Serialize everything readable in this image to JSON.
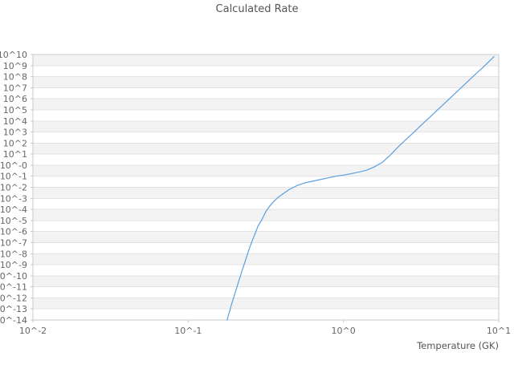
{
  "chart_data": {
    "type": "line",
    "title": "Calculated Rate",
    "xlabel": "Temperature (GK)",
    "ylabel": "",
    "x_scale": "log",
    "y_scale": "log",
    "xlim": [
      0.01,
      10
    ],
    "ylim": [
      1e-14,
      10000000000.0
    ],
    "grid": "horizontal-bands",
    "legend": "none",
    "x_tick_values": [
      0.01,
      0.1,
      1,
      10
    ],
    "x_tick_labels": [
      "10^-2",
      "10^-1",
      "10^0",
      "10^1"
    ],
    "y_tick_labels": [
      "10^10",
      "10^9",
      "10^8",
      "10^7",
      "10^6",
      "10^5",
      "10^4",
      "10^3",
      "10^2",
      "10^1",
      "10^-0",
      "10^-1",
      "10^-2",
      "10^-3",
      "10^-4",
      "10^-5",
      "10^-6",
      "10^-7",
      "10^-8",
      "10^-9",
      "10^-10",
      "10^-11",
      "10^-12",
      "10^-13",
      "10^-14"
    ],
    "y_tick_exponents": [
      10,
      9,
      8,
      7,
      6,
      5,
      4,
      3,
      2,
      1,
      0,
      -1,
      -2,
      -3,
      -4,
      -5,
      -6,
      -7,
      -8,
      -9,
      -10,
      -11,
      -12,
      -13,
      -14
    ],
    "series": [
      {
        "name": "calculated-rate",
        "color": "#5b9fe0",
        "points": [
          [
            0.178,
            1e-14
          ],
          [
            0.19,
            2.5e-13
          ],
          [
            0.2,
            2.5e-12
          ],
          [
            0.212,
            3.5e-11
          ],
          [
            0.224,
            4e-10
          ],
          [
            0.237,
            4.5e-09
          ],
          [
            0.251,
            5e-08
          ],
          [
            0.266,
            4e-07
          ],
          [
            0.282,
            3.2e-06
          ],
          [
            0.3,
            1.4e-05
          ],
          [
            0.316,
            6.3e-05
          ],
          [
            0.335,
            0.0002
          ],
          [
            0.355,
            0.0005
          ],
          [
            0.376,
            0.0011
          ],
          [
            0.398,
            0.002
          ],
          [
            0.447,
            0.0063
          ],
          [
            0.501,
            0.014
          ],
          [
            0.562,
            0.025
          ],
          [
            0.631,
            0.035
          ],
          [
            0.708,
            0.05
          ],
          [
            0.794,
            0.07
          ],
          [
            0.891,
            0.1
          ],
          [
            1.0,
            0.126
          ],
          [
            1.12,
            0.17
          ],
          [
            1.26,
            0.24
          ],
          [
            1.41,
            0.35
          ],
          [
            1.58,
            0.7
          ],
          [
            1.78,
            1.8
          ],
          [
            2.0,
            8.0
          ],
          [
            2.24,
            42
          ],
          [
            2.51,
            190.0
          ],
          [
            2.82,
            870.0
          ],
          [
            3.16,
            4000.0
          ],
          [
            3.55,
            18000.0
          ],
          [
            3.98,
            83000.0
          ],
          [
            4.47,
            380000.0
          ],
          [
            5.01,
            1700000.0
          ],
          [
            5.62,
            7900000.0
          ],
          [
            6.31,
            36000000.0
          ],
          [
            7.08,
            170000000.0
          ],
          [
            7.94,
            710000000.0
          ],
          [
            8.91,
            3500000000.0
          ],
          [
            9.33,
            6600000000.0
          ]
        ]
      }
    ],
    "style": {
      "background": "#ffffff",
      "band_color": "#f3f3f3",
      "grid_color": "#e3e3e3",
      "spine_color": "#c9c9c9",
      "tick_text_color": "#666666",
      "title_color": "#555555"
    }
  }
}
